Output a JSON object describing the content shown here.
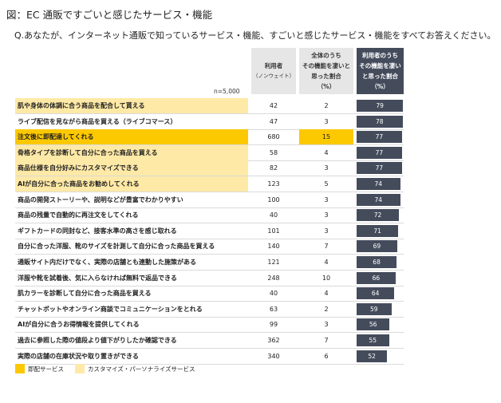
{
  "title": "図：EC 通販ですごいと感じたサービス・機能",
  "question": "Q.あなたが、インターネット通販で知っているサービス・機能、すごいと感じたサービス・機能をすべてお答えください。",
  "header": {
    "users": "利用者",
    "users_sub": "（ノンウェイト）",
    "share_line1": "全体のうち",
    "share_line2": "その機能を凄いと思った割合",
    "share_line3": "（%）",
    "rate_line1": "利用者のうち",
    "rate_line2": "その機能を凄いと思った割合",
    "rate_line3": "（%）"
  },
  "n_label": "n=5,000",
  "legend": {
    "shipping": "即配サービス",
    "custom": "カスタマイズ・パーソナライズサービス"
  },
  "colors": {
    "shipping": "#fcc800",
    "custom": "#ffe9a6",
    "bar": "#444c5c",
    "header_dark": "#444c5c"
  },
  "chart_data": {
    "type": "table",
    "columns": [
      "利用者（ノンウェイト）",
      "全体のうちその機能を凄いと思った割合（%）",
      "利用者のうちその機能を凄いと思った割合（%）"
    ],
    "bar_max": 80,
    "rows": [
      {
        "label": "肌や身体の体調に合う商品を配合して貰える",
        "users": "42",
        "share": "2",
        "rate": 79,
        "highlight": "custom"
      },
      {
        "label": "ライブ配信を見ながら商品を買える（ライブコマース）",
        "users": "47",
        "share": "3",
        "rate": 78,
        "highlight": ""
      },
      {
        "label": "注文後に即配達してくれる",
        "users": "680",
        "share": "15",
        "rate": 77,
        "highlight": "shipping"
      },
      {
        "label": "骨格タイプを診断して自分に合った商品を買える",
        "users": "58",
        "share": "4",
        "rate": 77,
        "highlight": "custom"
      },
      {
        "label": "商品仕様を自分好みにカスタマイズできる",
        "users": "82",
        "share": "3",
        "rate": 77,
        "highlight": "custom"
      },
      {
        "label": "AIが自分に合った商品をお勧めしてくれる",
        "users": "123",
        "share": "5",
        "rate": 74,
        "highlight": "custom"
      },
      {
        "label": "商品の開発ストーリーや、説明などが豊富でわかりやすい",
        "users": "100",
        "share": "3",
        "rate": 74,
        "highlight": ""
      },
      {
        "label": "商品の残量で自動的に再注文をしてくれる",
        "users": "40",
        "share": "3",
        "rate": 72,
        "highlight": ""
      },
      {
        "label": "ギフトカードの同封など、接客水準の高さを感じ取れる",
        "users": "101",
        "share": "3",
        "rate": 71,
        "highlight": ""
      },
      {
        "label": "自分に合った洋服、靴のサイズを計測して自分に合った商品を買える",
        "users": "140",
        "share": "7",
        "rate": 69,
        "highlight": ""
      },
      {
        "label": "通販サイト内だけでなく、実際の店舗とも連動した施策がある",
        "users": "121",
        "share": "4",
        "rate": 68,
        "highlight": ""
      },
      {
        "label": "洋服や靴を試着後、気に入らなければ無料で返品できる",
        "users": "248",
        "share": "10",
        "rate": 66,
        "highlight": ""
      },
      {
        "label": "肌カラーを診断して自分に合った商品を買える",
        "users": "40",
        "share": "4",
        "rate": 64,
        "highlight": ""
      },
      {
        "label": "チャットボットやオンライン商談でコミュニケーションをとれる",
        "users": "63",
        "share": "2",
        "rate": 59,
        "highlight": ""
      },
      {
        "label": "AIが自分に合うお得情報を提供してくれる",
        "users": "99",
        "share": "3",
        "rate": 56,
        "highlight": ""
      },
      {
        "label": "過去に参照した際の値段より値下がりしたか確認できる",
        "users": "362",
        "share": "7",
        "rate": 55,
        "highlight": ""
      },
      {
        "label": "実際の店舗の在庫状況や取り置きができる",
        "users": "340",
        "share": "6",
        "rate": 52,
        "highlight": ""
      }
    ]
  }
}
